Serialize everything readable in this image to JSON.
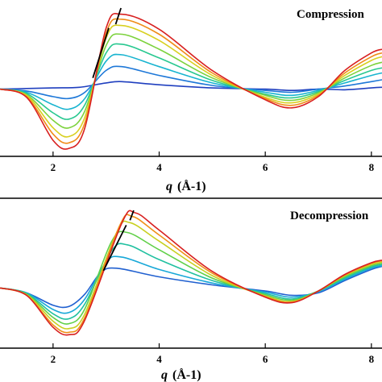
{
  "chart_data": [
    {
      "type": "line",
      "title": "Compression",
      "xlabel_q": "q",
      "xlabel_unit": "(Å-1)",
      "xlim": [
        1.0,
        8.2
      ],
      "xticks": [
        "2",
        "4",
        "6",
        "8"
      ],
      "ylim": [
        -1.0,
        1.3
      ],
      "series": [
        {
          "color": "#1f3fbf",
          "values": [
            [
              1.0,
              0.0
            ],
            [
              1.5,
              0.01
            ],
            [
              2.0,
              0.02
            ],
            [
              2.5,
              0.03
            ],
            [
              3.0,
              0.1
            ],
            [
              3.3,
              0.12
            ],
            [
              4.0,
              0.07
            ],
            [
              5.0,
              0.02
            ],
            [
              6.0,
              0.0
            ],
            [
              6.5,
              -0.02
            ],
            [
              7.0,
              0.0
            ],
            [
              7.5,
              -0.01
            ],
            [
              8.0,
              0.02
            ],
            [
              8.2,
              0.03
            ]
          ]
        },
        {
          "color": "#1e78d8",
          "values": [
            [
              1.0,
              0.0
            ],
            [
              1.5,
              -0.03
            ],
            [
              2.0,
              -0.12
            ],
            [
              2.3,
              -0.15
            ],
            [
              2.6,
              -0.05
            ],
            [
              3.0,
              0.3
            ],
            [
              3.3,
              0.36
            ],
            [
              4.0,
              0.22
            ],
            [
              5.0,
              0.06
            ],
            [
              6.0,
              -0.02
            ],
            [
              6.5,
              -0.05
            ],
            [
              7.0,
              0.0
            ],
            [
              7.5,
              0.05
            ],
            [
              8.0,
              0.12
            ],
            [
              8.2,
              0.15
            ]
          ]
        },
        {
          "color": "#18b4d0",
          "values": [
            [
              1.0,
              0.0
            ],
            [
              1.5,
              -0.05
            ],
            [
              2.0,
              -0.25
            ],
            [
              2.3,
              -0.32
            ],
            [
              2.6,
              -0.15
            ],
            [
              3.0,
              0.45
            ],
            [
              3.3,
              0.55
            ],
            [
              4.0,
              0.36
            ],
            [
              5.0,
              0.1
            ],
            [
              6.0,
              -0.05
            ],
            [
              6.5,
              -0.1
            ],
            [
              7.0,
              -0.02
            ],
            [
              7.5,
              0.1
            ],
            [
              8.0,
              0.22
            ],
            [
              8.2,
              0.26
            ]
          ]
        },
        {
          "color": "#28c890",
          "values": [
            [
              1.0,
              0.0
            ],
            [
              1.5,
              -0.07
            ],
            [
              2.0,
              -0.38
            ],
            [
              2.3,
              -0.48
            ],
            [
              2.6,
              -0.25
            ],
            [
              3.0,
              0.58
            ],
            [
              3.3,
              0.72
            ],
            [
              4.0,
              0.5
            ],
            [
              5.0,
              0.14
            ],
            [
              6.0,
              -0.08
            ],
            [
              6.5,
              -0.14
            ],
            [
              7.0,
              -0.04
            ],
            [
              7.5,
              0.14
            ],
            [
              8.0,
              0.3
            ],
            [
              8.2,
              0.34
            ]
          ]
        },
        {
          "color": "#7cd23c",
          "values": [
            [
              1.0,
              0.0
            ],
            [
              1.5,
              -0.09
            ],
            [
              2.0,
              -0.5
            ],
            [
              2.3,
              -0.62
            ],
            [
              2.6,
              -0.35
            ],
            [
              3.0,
              0.7
            ],
            [
              3.3,
              0.88
            ],
            [
              4.0,
              0.64
            ],
            [
              5.0,
              0.18
            ],
            [
              6.0,
              -0.1
            ],
            [
              6.5,
              -0.18
            ],
            [
              7.0,
              -0.06
            ],
            [
              7.5,
              0.18
            ],
            [
              8.0,
              0.38
            ],
            [
              8.2,
              0.43
            ]
          ]
        },
        {
          "color": "#d8d020",
          "values": [
            [
              1.0,
              0.0
            ],
            [
              1.5,
              -0.1
            ],
            [
              2.0,
              -0.62
            ],
            [
              2.3,
              -0.76
            ],
            [
              2.6,
              -0.45
            ],
            [
              3.0,
              0.82
            ],
            [
              3.3,
              1.02
            ],
            [
              4.0,
              0.78
            ],
            [
              5.0,
              0.22
            ],
            [
              6.0,
              -0.13
            ],
            [
              6.5,
              -0.22
            ],
            [
              7.0,
              -0.08
            ],
            [
              7.5,
              0.22
            ],
            [
              8.0,
              0.46
            ],
            [
              8.2,
              0.52
            ]
          ]
        },
        {
          "color": "#f08c18",
          "values": [
            [
              1.0,
              0.0
            ],
            [
              1.5,
              -0.12
            ],
            [
              2.0,
              -0.72
            ],
            [
              2.3,
              -0.86
            ],
            [
              2.6,
              -0.54
            ],
            [
              3.0,
              0.9
            ],
            [
              3.3,
              1.12
            ],
            [
              4.0,
              0.88
            ],
            [
              5.0,
              0.26
            ],
            [
              6.0,
              -0.15
            ],
            [
              6.5,
              -0.26
            ],
            [
              7.0,
              -0.1
            ],
            [
              7.5,
              0.26
            ],
            [
              8.0,
              0.52
            ],
            [
              8.2,
              0.58
            ]
          ]
        },
        {
          "color": "#d82020",
          "values": [
            [
              1.0,
              0.0
            ],
            [
              1.5,
              -0.13
            ],
            [
              2.0,
              -0.82
            ],
            [
              2.3,
              -0.95
            ],
            [
              2.6,
              -0.62
            ],
            [
              3.0,
              0.98
            ],
            [
              3.3,
              1.2
            ],
            [
              4.0,
              0.96
            ],
            [
              5.0,
              0.3
            ],
            [
              6.0,
              -0.17
            ],
            [
              6.5,
              -0.3
            ],
            [
              7.0,
              -0.12
            ],
            [
              7.5,
              0.3
            ],
            [
              8.0,
              0.58
            ],
            [
              8.2,
              0.64
            ]
          ]
        }
      ],
      "peak_guide": [
        [
          2.75,
          0.18
        ],
        [
          3.05,
          0.98
        ]
      ],
      "peak_guide2": [
        [
          3.18,
          1.04
        ],
        [
          3.28,
          1.3
        ]
      ]
    },
    {
      "type": "line",
      "title": "Decompression",
      "xlabel_q": "q",
      "xlabel_unit": "(Å-1)",
      "xlim": [
        1.0,
        8.2
      ],
      "xticks": [
        "2",
        "4",
        "6",
        "8"
      ],
      "ylim": [
        -0.9,
        1.3
      ],
      "series": [
        {
          "color": "#2060d0",
          "values": [
            [
              1.0,
              0.0
            ],
            [
              1.5,
              -0.08
            ],
            [
              2.0,
              -0.28
            ],
            [
              2.3,
              -0.3
            ],
            [
              2.6,
              -0.1
            ],
            [
              2.9,
              0.25
            ],
            [
              3.2,
              0.32
            ],
            [
              4.0,
              0.18
            ],
            [
              5.0,
              0.05
            ],
            [
              6.0,
              -0.05
            ],
            [
              6.5,
              -0.12
            ],
            [
              7.0,
              -0.08
            ],
            [
              7.5,
              0.12
            ],
            [
              8.0,
              0.3
            ],
            [
              8.2,
              0.35
            ]
          ]
        },
        {
          "color": "#18a8d8",
          "values": [
            [
              1.0,
              0.0
            ],
            [
              1.5,
              -0.08
            ],
            [
              2.0,
              -0.35
            ],
            [
              2.3,
              -0.4
            ],
            [
              2.6,
              -0.18
            ],
            [
              3.0,
              0.42
            ],
            [
              3.3,
              0.5
            ],
            [
              4.0,
              0.3
            ],
            [
              5.0,
              0.08
            ],
            [
              6.0,
              -0.07
            ],
            [
              6.5,
              -0.15
            ],
            [
              7.0,
              -0.06
            ],
            [
              7.5,
              0.14
            ],
            [
              8.0,
              0.32
            ],
            [
              8.2,
              0.36
            ]
          ]
        },
        {
          "color": "#20c0a0",
          "values": [
            [
              1.0,
              0.0
            ],
            [
              1.5,
              -0.09
            ],
            [
              2.0,
              -0.42
            ],
            [
              2.3,
              -0.5
            ],
            [
              2.6,
              -0.26
            ],
            [
              3.1,
              0.6
            ],
            [
              3.4,
              0.7
            ],
            [
              4.0,
              0.46
            ],
            [
              5.0,
              0.12
            ],
            [
              6.0,
              -0.09
            ],
            [
              6.5,
              -0.18
            ],
            [
              7.0,
              -0.05
            ],
            [
              7.5,
              0.16
            ],
            [
              8.0,
              0.34
            ],
            [
              8.2,
              0.38
            ]
          ]
        },
        {
          "color": "#60d048",
          "values": [
            [
              1.0,
              0.0
            ],
            [
              1.5,
              -0.1
            ],
            [
              2.0,
              -0.48
            ],
            [
              2.3,
              -0.58
            ],
            [
              2.6,
              -0.34
            ],
            [
              3.1,
              0.75
            ],
            [
              3.4,
              0.9
            ],
            [
              4.0,
              0.62
            ],
            [
              5.0,
              0.16
            ],
            [
              6.0,
              -0.11
            ],
            [
              6.5,
              -0.2
            ],
            [
              7.0,
              -0.05
            ],
            [
              7.5,
              0.18
            ],
            [
              8.0,
              0.36
            ],
            [
              8.2,
              0.4
            ]
          ]
        },
        {
          "color": "#c8d020",
          "values": [
            [
              1.0,
              0.0
            ],
            [
              1.5,
              -0.11
            ],
            [
              2.0,
              -0.54
            ],
            [
              2.3,
              -0.66
            ],
            [
              2.6,
              -0.42
            ],
            [
              3.2,
              0.9
            ],
            [
              3.45,
              1.06
            ],
            [
              4.0,
              0.76
            ],
            [
              5.0,
              0.2
            ],
            [
              6.0,
              -0.13
            ],
            [
              6.5,
              -0.22
            ],
            [
              7.0,
              -0.05
            ],
            [
              7.5,
              0.2
            ],
            [
              8.0,
              0.38
            ],
            [
              8.2,
              0.42
            ]
          ]
        },
        {
          "color": "#f09018",
          "values": [
            [
              1.0,
              0.0
            ],
            [
              1.5,
              -0.12
            ],
            [
              2.0,
              -0.6
            ],
            [
              2.3,
              -0.72
            ],
            [
              2.6,
              -0.48
            ],
            [
              3.25,
              1.0
            ],
            [
              3.5,
              1.16
            ],
            [
              4.0,
              0.86
            ],
            [
              5.0,
              0.24
            ],
            [
              6.0,
              -0.14
            ],
            [
              6.5,
              -0.23
            ],
            [
              7.0,
              -0.05
            ],
            [
              7.5,
              0.21
            ],
            [
              8.0,
              0.4
            ],
            [
              8.2,
              0.44
            ]
          ]
        },
        {
          "color": "#d82020",
          "values": [
            [
              1.0,
              0.0
            ],
            [
              1.5,
              -0.12
            ],
            [
              2.0,
              -0.64
            ],
            [
              2.3,
              -0.76
            ],
            [
              2.6,
              -0.52
            ],
            [
              3.3,
              1.06
            ],
            [
              3.55,
              1.22
            ],
            [
              4.0,
              0.94
            ],
            [
              5.0,
              0.27
            ],
            [
              6.0,
              -0.15
            ],
            [
              6.5,
              -0.24
            ],
            [
              7.0,
              -0.05
            ],
            [
              7.5,
              0.22
            ],
            [
              8.0,
              0.41
            ],
            [
              8.2,
              0.45
            ]
          ]
        }
      ],
      "peak_guide": [
        [
          2.95,
          0.28
        ],
        [
          3.38,
          1.02
        ]
      ],
      "peak_guide2": [
        [
          3.45,
          1.1
        ],
        [
          3.52,
          1.26
        ]
      ]
    }
  ]
}
